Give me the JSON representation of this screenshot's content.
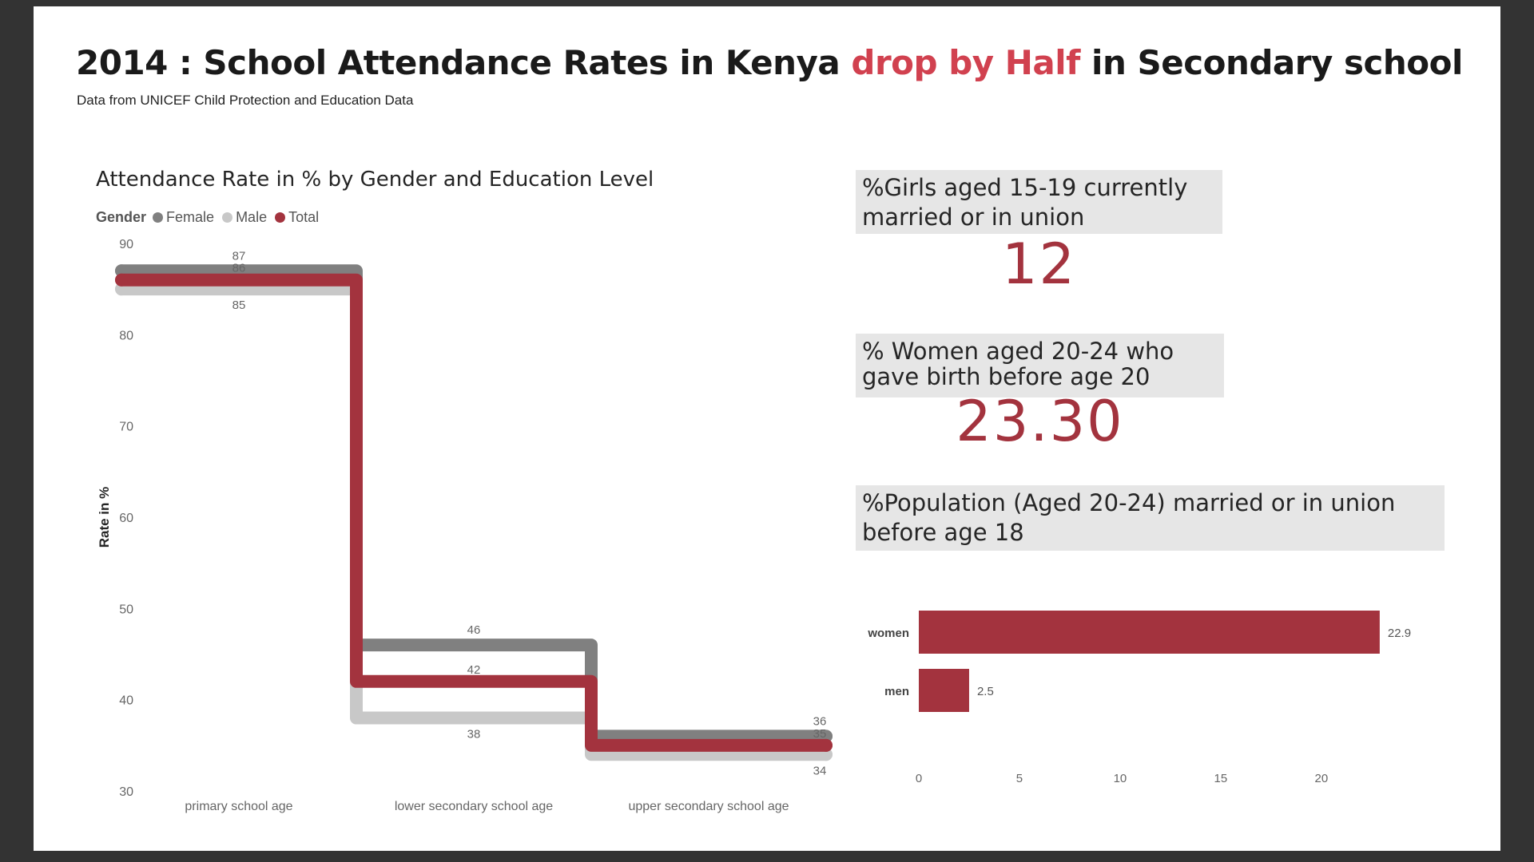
{
  "header": {
    "title_part1": "2014 : School Attendance Rates in Kenya ",
    "title_highlight": "drop by Half",
    "title_part2": " in Secondary school",
    "subtitle": "Data from UNICEF Child Protection and Education Data",
    "highlight_color": "#d1414f"
  },
  "kpis": [
    {
      "label": "%Girls aged 15-19 currently married or in union",
      "value": "12"
    },
    {
      "label": "% Women aged 20-24 who gave birth before age 20",
      "value": "23.30"
    },
    {
      "label": "%Population (Aged 20-24) married or in union before age 18",
      "value": ""
    }
  ],
  "chart_data": [
    {
      "type": "line",
      "title": "Attendance Rate in % by Gender and Education Level",
      "legend_title": "Gender",
      "legend_position": "top-left",
      "ylabel": "Rate in %",
      "xlabel": "",
      "ylim": [
        30,
        90
      ],
      "yticks": [
        90,
        80,
        70,
        60,
        50,
        40,
        30
      ],
      "grid": false,
      "categories": [
        "primary school age",
        "lower secondary school age",
        "upper secondary school age"
      ],
      "series": [
        {
          "name": "Female",
          "color": "#808080",
          "values": [
            87,
            46,
            36
          ],
          "labels": [
            "87",
            "46",
            "36"
          ]
        },
        {
          "name": "Male",
          "color": "#c8c8c8",
          "values": [
            85,
            38,
            34
          ],
          "labels": [
            "85",
            "38",
            "34"
          ]
        },
        {
          "name": "Total",
          "color": "#a3333e",
          "values": [
            86,
            42,
            35
          ],
          "labels": [
            "86",
            "42",
            "35"
          ]
        }
      ]
    },
    {
      "type": "bar",
      "orientation": "horizontal",
      "title": "",
      "categories": [
        "women",
        "men"
      ],
      "values": [
        22.9,
        2.5
      ],
      "labels": [
        "22.9",
        "2.5"
      ],
      "color": "#a3333e",
      "xlim": [
        0,
        23.5
      ],
      "xticks": [
        0,
        5,
        10,
        15,
        20
      ],
      "grid": false
    }
  ]
}
